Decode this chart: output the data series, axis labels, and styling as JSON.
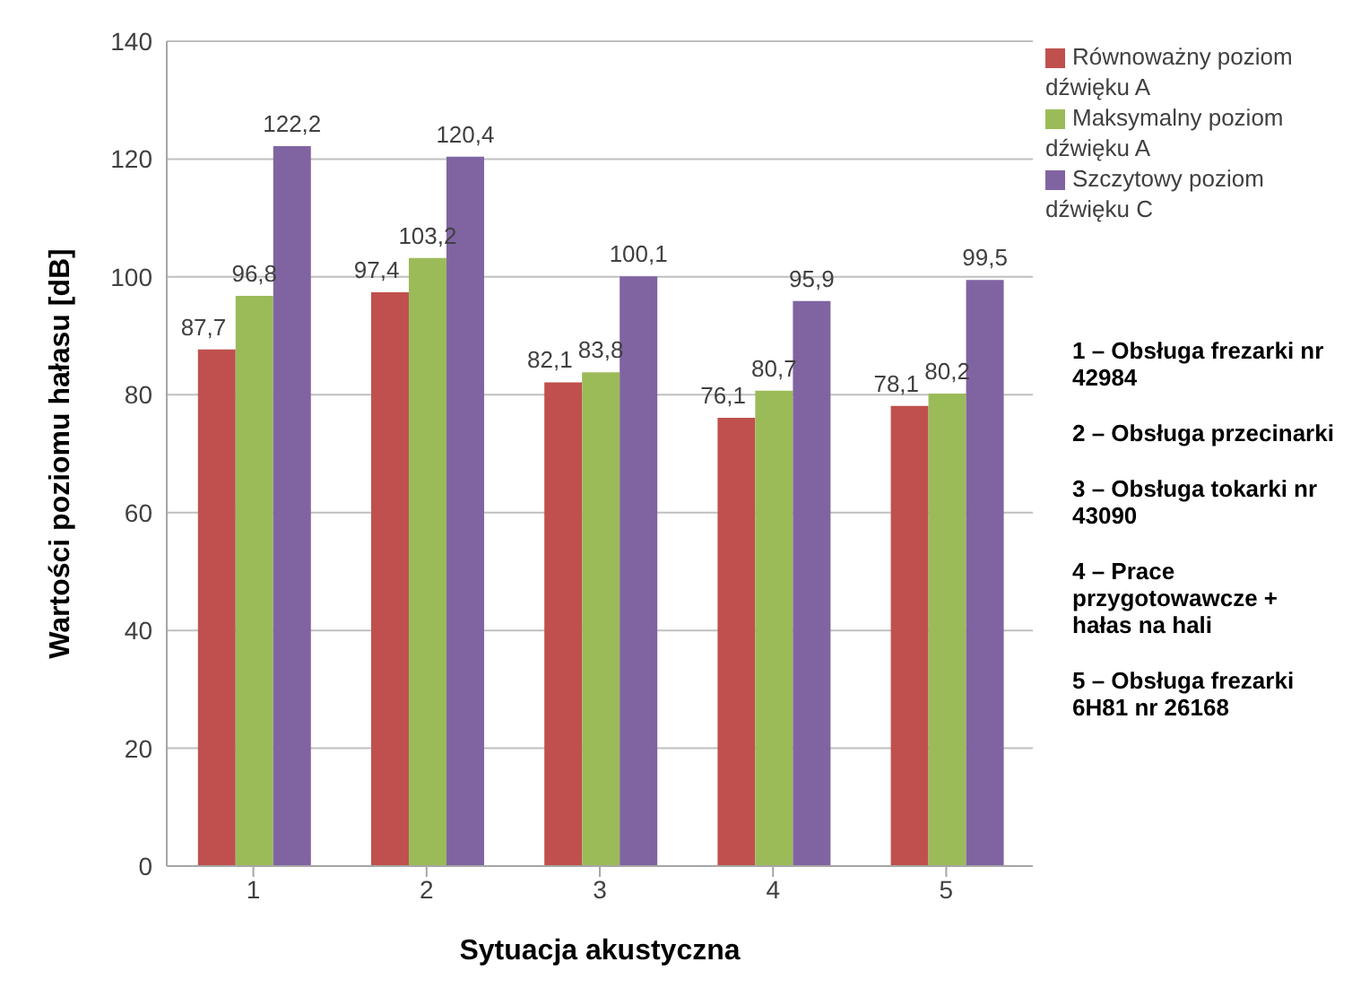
{
  "chart_data": {
    "type": "bar",
    "categories": [
      "1",
      "2",
      "3",
      "4",
      "5"
    ],
    "series": [
      {
        "name": "Równoważny poziom dźwięku A",
        "color": "#c0504d",
        "values": [
          87.7,
          97.4,
          82.1,
          76.1,
          78.1
        ],
        "value_labels": [
          "87,7",
          "97,4",
          "82,1",
          "76,1",
          "78,1"
        ]
      },
      {
        "name": "Maksymalny poziom dźwięku A",
        "color": "#9bbb59",
        "values": [
          96.8,
          103.2,
          83.8,
          80.7,
          80.2
        ],
        "value_labels": [
          "96,8",
          "103,2",
          "83,8",
          "80,7",
          "80,2"
        ]
      },
      {
        "name": "Szczytowy poziom dźwięku C",
        "color": "#8064a2",
        "values": [
          122.2,
          120.4,
          100.1,
          95.9,
          99.5
        ],
        "value_labels": [
          "122,2",
          "120,4",
          "100,1",
          "95,9",
          "99,5"
        ]
      }
    ],
    "xlabel": "Sytuacja akustyczna",
    "ylabel": "Wartości poziomu hałasu [dB]",
    "ylim": [
      0,
      140
    ],
    "yticks": [
      0,
      20,
      40,
      60,
      80,
      100,
      120,
      140
    ],
    "grid": "y",
    "legend": "top right",
    "annotations": [
      "1 – Obsługa frezarki nr 42984",
      "2 – Obsługa przecinarki",
      "3 – Obsługa tokarki nr 43090",
      "4 – Prace przygotowawcze + hałas na hali",
      "5 – Obsługa frezarki 6H81 nr 26168"
    ]
  }
}
